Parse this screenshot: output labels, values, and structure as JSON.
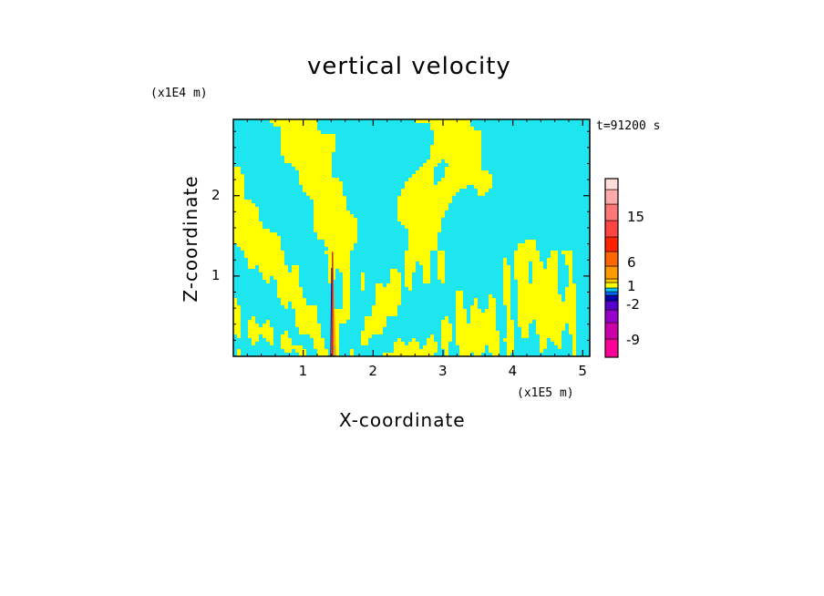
{
  "chart_data": {
    "type": "heatmap",
    "title": "vertical velocity",
    "xlabel": "X-coordinate",
    "ylabel": "Z-coordinate",
    "x_unit": "(x1E5 m)",
    "y_unit": "(x1E4 m)",
    "time_label": "t=91200 s",
    "xlim": [
      0,
      5.1
    ],
    "ylim": [
      0,
      2.95
    ],
    "x_ticks": [
      "1",
      "2",
      "3",
      "4",
      "5"
    ],
    "y_ticks": [
      "1",
      "2"
    ],
    "dominant_colors": {
      "negative": "#1ee6f0",
      "positive": "#ffff00"
    },
    "colorbar": {
      "labels": [
        "15",
        "6",
        "1",
        "-2",
        "-9"
      ],
      "colors": [
        "#ff0099",
        "#cc00aa",
        "#9900cc",
        "#5500cc",
        "#0000aa",
        "#0066ff",
        "#00ccff",
        "#ffff00",
        "#ffcc00",
        "#ff9900",
        "#ff6600",
        "#ff2200",
        "#ff4444",
        "#ff7777",
        "#ffaaaa",
        "#ffdddd"
      ]
    }
  }
}
